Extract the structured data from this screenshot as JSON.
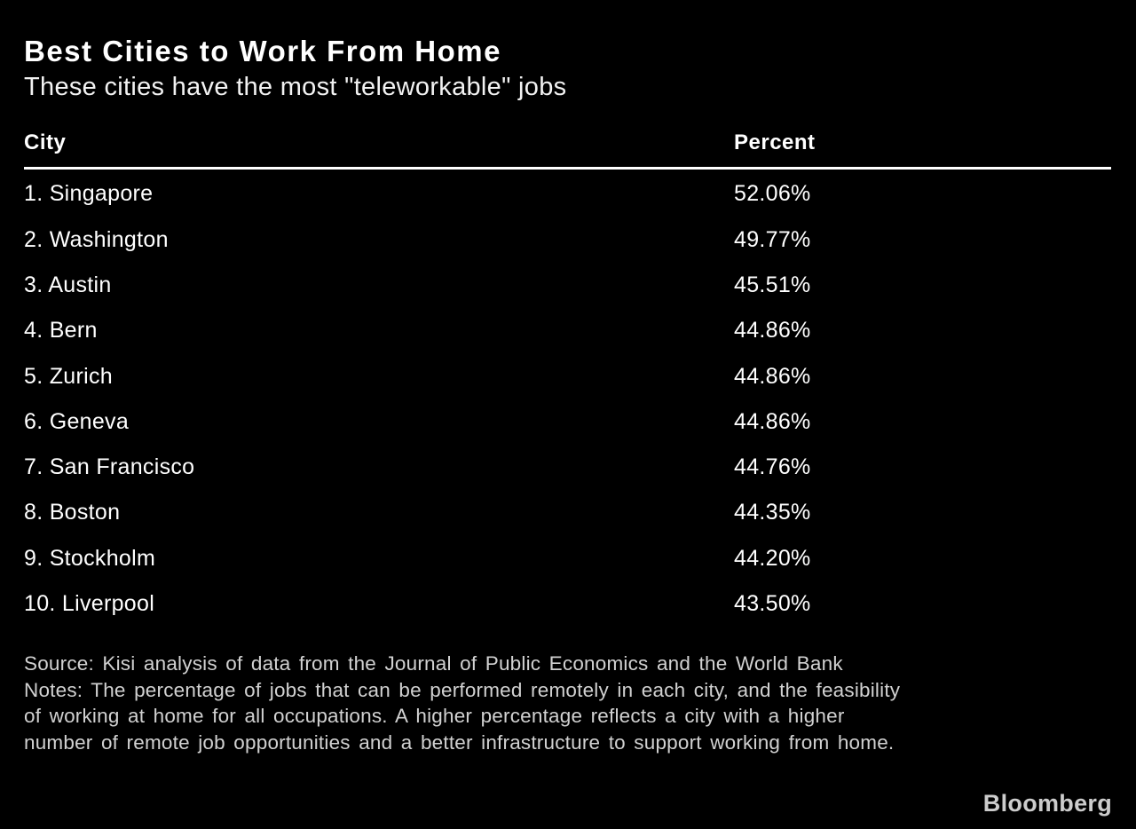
{
  "header": {
    "title": "Best Cities to Work From Home",
    "subtitle": "These cities have the most \"teleworkable\" jobs"
  },
  "table": {
    "columns": [
      "City",
      "Percent"
    ],
    "rows": [
      {
        "label": "1. Singapore",
        "percent": "52.06%"
      },
      {
        "label": "2. Washington",
        "percent": "49.77%"
      },
      {
        "label": "3. Austin",
        "percent": "45.51%"
      },
      {
        "label": "4. Bern",
        "percent": "44.86%"
      },
      {
        "label": "5. Zurich",
        "percent": "44.86%"
      },
      {
        "label": "6. Geneva",
        "percent": "44.86%"
      },
      {
        "label": "7. San Francisco",
        "percent": "44.76%"
      },
      {
        "label": "8. Boston",
        "percent": "44.35%"
      },
      {
        "label": "9. Stockholm",
        "percent": "44.20%"
      },
      {
        "label": "10. Liverpool",
        "percent": "43.50%"
      }
    ]
  },
  "footnote": {
    "source": "Source: Kisi analysis of data from the Journal of Public Economics and the World Bank",
    "notes": "Notes: The percentage of jobs that can be performed remotely in each city, and the feasibility of working at home for all occupations. A higher percentage reflects a city with a higher number of remote job opportunities and a better infrastructure to support working from home."
  },
  "brand": {
    "label": "Bloomberg"
  },
  "colors": {
    "background": "#000000",
    "primary_text": "#ffffff",
    "footnote_text": "#d1d1d1",
    "brand_text": "#cccccc",
    "divider": "#ffffff"
  },
  "chart_data": {
    "type": "table",
    "title": "Best Cities to Work From Home",
    "subtitle": "These cities have the most \"teleworkable\" jobs",
    "columns": [
      "City",
      "Percent"
    ],
    "categories": [
      "Singapore",
      "Washington",
      "Austin",
      "Bern",
      "Zurich",
      "Geneva",
      "San Francisco",
      "Boston",
      "Stockholm",
      "Liverpool"
    ],
    "values": [
      52.06,
      49.77,
      45.51,
      44.86,
      44.86,
      44.86,
      44.76,
      44.35,
      44.2,
      43.5
    ],
    "value_unit": "percent",
    "source": "Kisi analysis of data from the Journal of Public Economics and the World Bank",
    "legend": "none",
    "grid": "off"
  }
}
